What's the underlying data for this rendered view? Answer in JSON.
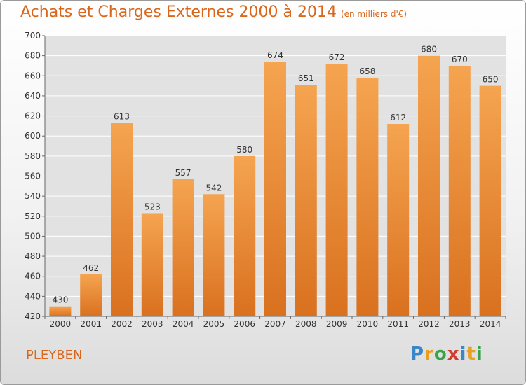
{
  "header": {
    "title": "Achats et Charges Externes 2000 à 2014",
    "subtitle": "(en milliers d'€)"
  },
  "commune": "PLEYBEN",
  "logo": {
    "text": "Proxiti",
    "letters": [
      {
        "ch": "P",
        "color": "#3b86c8"
      },
      {
        "ch": "r",
        "color": "#e8a020"
      },
      {
        "ch": "o",
        "color": "#3aa34a"
      },
      {
        "ch": "x",
        "color": "#d23b2e"
      },
      {
        "ch": "i",
        "color": "#3b86c8"
      },
      {
        "ch": "t",
        "color": "#e8a020"
      },
      {
        "ch": "i",
        "color": "#3aa34a"
      }
    ]
  },
  "colors": {
    "bar_top": "#f5a450",
    "bar_bottom": "#d9711f",
    "accent": "#d9661a",
    "grid": "#ffffff",
    "plot_bg": "#e2e2e2"
  },
  "chart_data": {
    "type": "bar",
    "title": "Achats et Charges Externes 2000 à 2014",
    "subtitle": "(en milliers d'€)",
    "xlabel": "",
    "ylabel": "",
    "categories": [
      "2000",
      "2001",
      "2002",
      "2003",
      "2004",
      "2005",
      "2006",
      "2007",
      "2008",
      "2009",
      "2010",
      "2011",
      "2012",
      "2013",
      "2014"
    ],
    "values": [
      430,
      462,
      613,
      523,
      557,
      542,
      580,
      674,
      651,
      672,
      658,
      612,
      680,
      670,
      650
    ],
    "ylim": [
      420,
      700
    ],
    "yticks": [
      420,
      440,
      460,
      480,
      500,
      520,
      540,
      560,
      580,
      600,
      620,
      640,
      660,
      680,
      700
    ],
    "grid": true,
    "legend": "none"
  }
}
